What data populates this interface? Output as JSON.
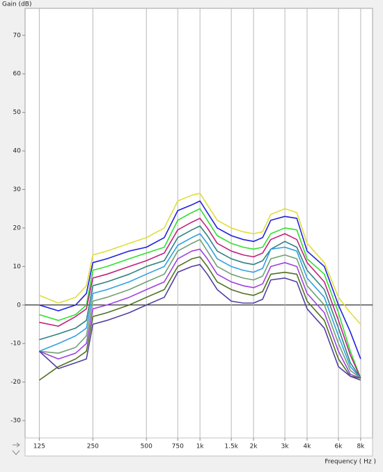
{
  "chart_data": {
    "type": "line",
    "ylabel": "Gain (dB)",
    "xlabel": "Frequency ( Hz )",
    "xscale": "log",
    "xlim": [
      104,
      9330
    ],
    "ylim": [
      -34.5,
      77
    ],
    "xticks": [
      125,
      250,
      500,
      750,
      {
        "value": 1000,
        "label": "1k"
      },
      {
        "value": 1500,
        "label": "1.5k"
      },
      {
        "value": 2000,
        "label": "2k"
      },
      {
        "value": 3000,
        "label": "3k"
      },
      {
        "value": 4000,
        "label": "4k"
      },
      {
        "value": 6000,
        "label": "6k"
      },
      {
        "value": 8000,
        "label": "8k"
      }
    ],
    "yticks": [
      -30,
      -20,
      -10,
      0,
      10,
      20,
      30,
      40,
      50,
      60,
      70
    ],
    "grid": "x",
    "zero_line": true,
    "x": [
      125,
      160,
      200,
      230,
      250,
      300,
      400,
      500,
      630,
      750,
      900,
      1000,
      1100,
      1250,
      1500,
      1750,
      2000,
      2250,
      2500,
      3000,
      3500,
      4000,
      5000,
      6000,
      7000,
      8000
    ],
    "series": [
      {
        "color": "#dede3a",
        "values": [
          2.5,
          0.5,
          2,
          5,
          13,
          14,
          16,
          17.5,
          20,
          27,
          28.5,
          29,
          26,
          22,
          20,
          19,
          18.5,
          19,
          23.5,
          25,
          24,
          16,
          11,
          2,
          -2,
          -5
        ]
      },
      {
        "color": "#2020e0",
        "values": [
          0,
          -1.5,
          0,
          3,
          11,
          12,
          14,
          15,
          17.5,
          24.5,
          26,
          27,
          24,
          20,
          18,
          17,
          16.5,
          17.5,
          22,
          23,
          22.5,
          14,
          10,
          0,
          -7,
          -14
        ]
      },
      {
        "color": "#30e030",
        "values": [
          -2.5,
          -4,
          -2.5,
          0,
          9,
          10,
          12,
          13.5,
          15,
          22,
          24,
          25,
          22,
          18,
          16,
          15,
          14.5,
          15,
          18.5,
          20,
          19.5,
          12,
          8,
          -2,
          -12,
          -19
        ]
      },
      {
        "color": "#c02080",
        "values": [
          -4.5,
          -5.5,
          -3,
          -1,
          7,
          8,
          10,
          11.5,
          13.5,
          19.5,
          21.5,
          22.5,
          20,
          16,
          14,
          13,
          12.5,
          13.5,
          17,
          18.5,
          17,
          11,
          6,
          -4,
          -13,
          -19
        ]
      },
      {
        "color": "#308080",
        "values": [
          -9,
          -7.5,
          -6,
          -4,
          5,
          6,
          8,
          10,
          11.5,
          17.5,
          19.5,
          20.5,
          18,
          14,
          12,
          11,
          10.5,
          11.5,
          14.5,
          16.5,
          15,
          9,
          4,
          -6,
          -15,
          -19
        ]
      },
      {
        "color": "#30a0e0",
        "values": [
          -12,
          -10,
          -8,
          -6,
          3,
          4,
          6,
          8,
          10,
          15.5,
          17.5,
          18.5,
          16,
          12,
          10,
          9,
          8.5,
          9.5,
          14.5,
          15,
          14,
          7,
          2,
          -8,
          -16,
          -19
        ]
      },
      {
        "color": "#70a070",
        "values": [
          -12,
          -12.5,
          -11,
          -8,
          1,
          2,
          4,
          6,
          8,
          14,
          16,
          17,
          14,
          10,
          8,
          7,
          6.5,
          7.5,
          12,
          13,
          12,
          5,
          0,
          -10,
          -17,
          -19
        ]
      },
      {
        "color": "#a040e0",
        "values": [
          -12,
          -14,
          -12.5,
          -10,
          -1,
          0,
          2,
          4,
          6,
          12,
          14,
          14.5,
          12,
          8,
          6,
          5,
          4.5,
          5.5,
          10,
          11,
          10,
          3,
          -2,
          -12,
          -18,
          -19
        ]
      },
      {
        "color": "#507020",
        "values": [
          -19.5,
          -16,
          -14,
          -12,
          -3,
          -2,
          0,
          2,
          4,
          10,
          12,
          12.5,
          10,
          6,
          4,
          3,
          2.5,
          3.5,
          8,
          8.5,
          8,
          1,
          -4,
          -14,
          -18.5,
          -19
        ]
      },
      {
        "color": "#5040a0",
        "values": [
          -12,
          -16.5,
          -15,
          -14,
          -5,
          -4,
          -2,
          0,
          2,
          8.5,
          10,
          10.5,
          8,
          4,
          1,
          0.5,
          0.5,
          1.5,
          6.5,
          7,
          6,
          -1,
          -6,
          -16,
          -18.5,
          -19.5
        ]
      }
    ]
  }
}
